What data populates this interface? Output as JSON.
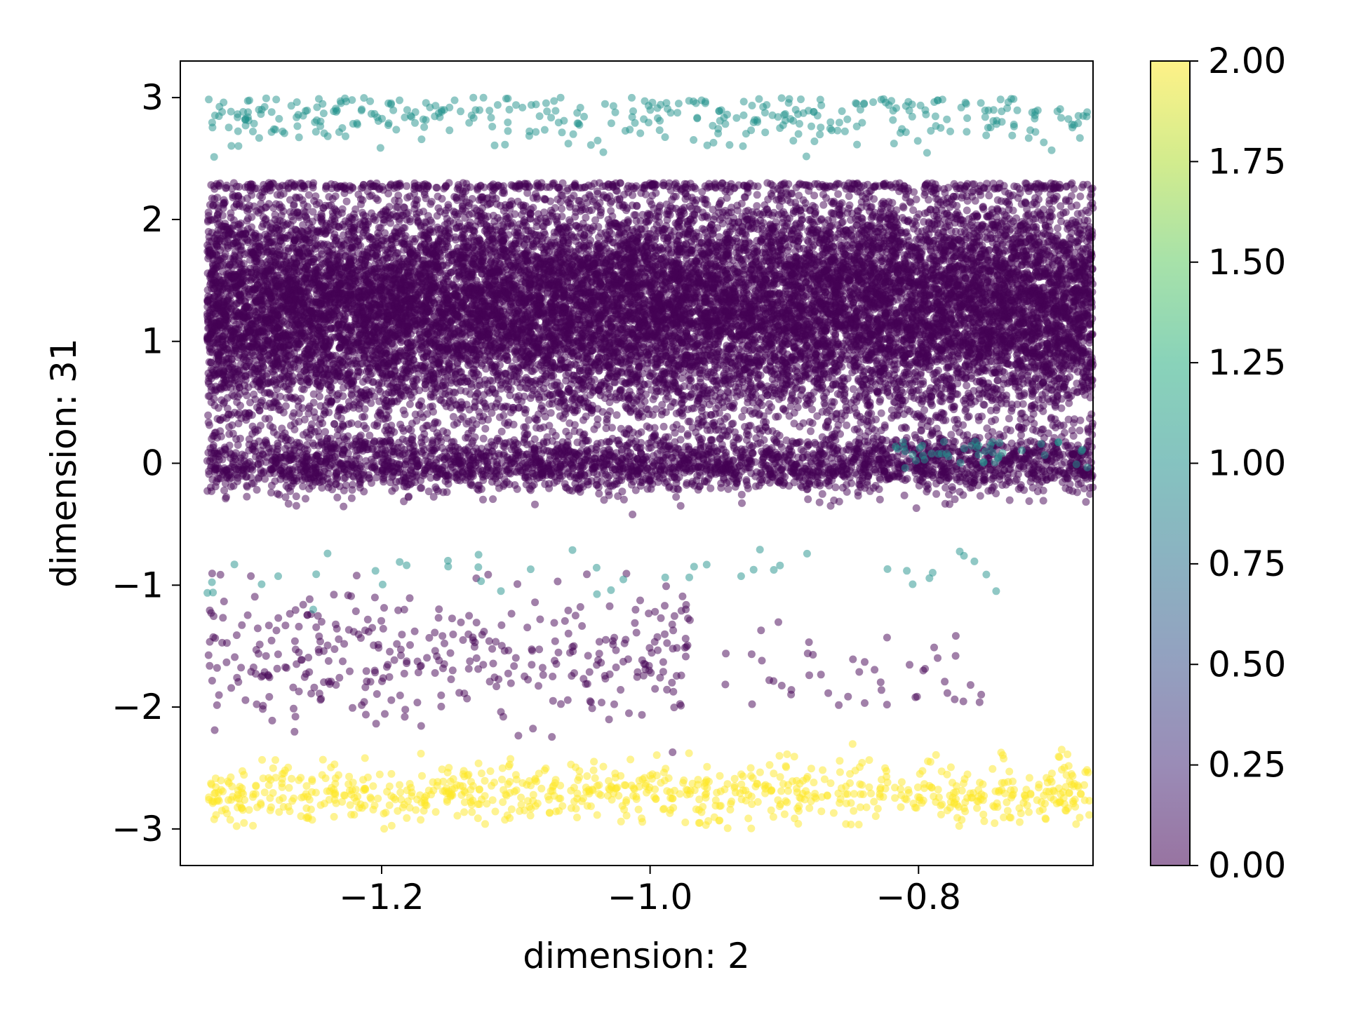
{
  "chart_data": {
    "type": "scatter",
    "xlabel": "dimension: 2",
    "ylabel": "dimension: 31",
    "xlim": [
      -1.35,
      -0.67
    ],
    "ylim": [
      -3.3,
      3.3
    ],
    "xticks": [
      -1.2,
      -1.0,
      -0.8
    ],
    "xtick_labels": [
      "−1.2",
      "−1.0",
      "−0.8"
    ],
    "yticks": [
      -3,
      -2,
      -1,
      0,
      1,
      2,
      3
    ],
    "ytick_labels": [
      "−3",
      "−2",
      "−1",
      "0",
      "1",
      "2",
      "3"
    ],
    "grid": false,
    "colorbar": {
      "colormap": "viridis",
      "range": [
        0.0,
        2.0
      ],
      "ticks": [
        0.0,
        0.25,
        0.5,
        0.75,
        1.0,
        1.25,
        1.5,
        1.75,
        2.0
      ],
      "tick_labels": [
        "0.00",
        "0.25",
        "0.50",
        "0.75",
        "1.00",
        "1.25",
        "1.50",
        "1.75",
        "2.00"
      ],
      "colors": {
        "0": "#440154",
        "1": "#21918c",
        "2": "#fde725"
      }
    },
    "marker_alpha": 0.5,
    "clusters": [
      {
        "class": 0,
        "x_range": [
          -1.33,
          -0.67
        ],
        "y_center": 1.3,
        "y_spread": 0.5,
        "y_range": [
          -0.1,
          2.3
        ],
        "density": "very dense"
      },
      {
        "class": 0,
        "x_range": [
          -1.33,
          -0.67
        ],
        "y_center": 0.0,
        "y_spread": 0.12,
        "y_range": [
          -0.5,
          0.3
        ],
        "density": "dense"
      },
      {
        "class": 0,
        "x_range": [
          -1.33,
          -0.97
        ],
        "y_center": -1.6,
        "y_spread": 0.3,
        "y_range": [
          -2.4,
          -0.9
        ],
        "density": "sparse"
      },
      {
        "class": 0,
        "x_range": [
          -0.95,
          -0.75
        ],
        "y_center": -1.7,
        "y_spread": 0.2,
        "y_range": [
          -2.0,
          -1.3
        ],
        "density": "very sparse"
      },
      {
        "class": 1,
        "x_range": [
          -1.33,
          -0.67
        ],
        "y_center": 2.85,
        "y_spread": 0.12,
        "y_range": [
          2.5,
          3.0
        ],
        "density": "sparse"
      },
      {
        "class": 1,
        "x_range": [
          -1.33,
          -0.72
        ],
        "y_center": -0.9,
        "y_spread": 0.12,
        "y_range": [
          -1.2,
          -0.7
        ],
        "density": "very sparse"
      },
      {
        "class": 1,
        "x_range": [
          -0.82,
          -0.67
        ],
        "y_center": 0.1,
        "y_spread": 0.08,
        "y_range": [
          -0.1,
          0.2
        ],
        "density": "very sparse"
      },
      {
        "class": 2,
        "x_range": [
          -1.33,
          -0.67
        ],
        "y_center": -2.7,
        "y_spread": 0.12,
        "y_range": [
          -3.0,
          -2.3
        ],
        "density": "medium"
      }
    ]
  }
}
